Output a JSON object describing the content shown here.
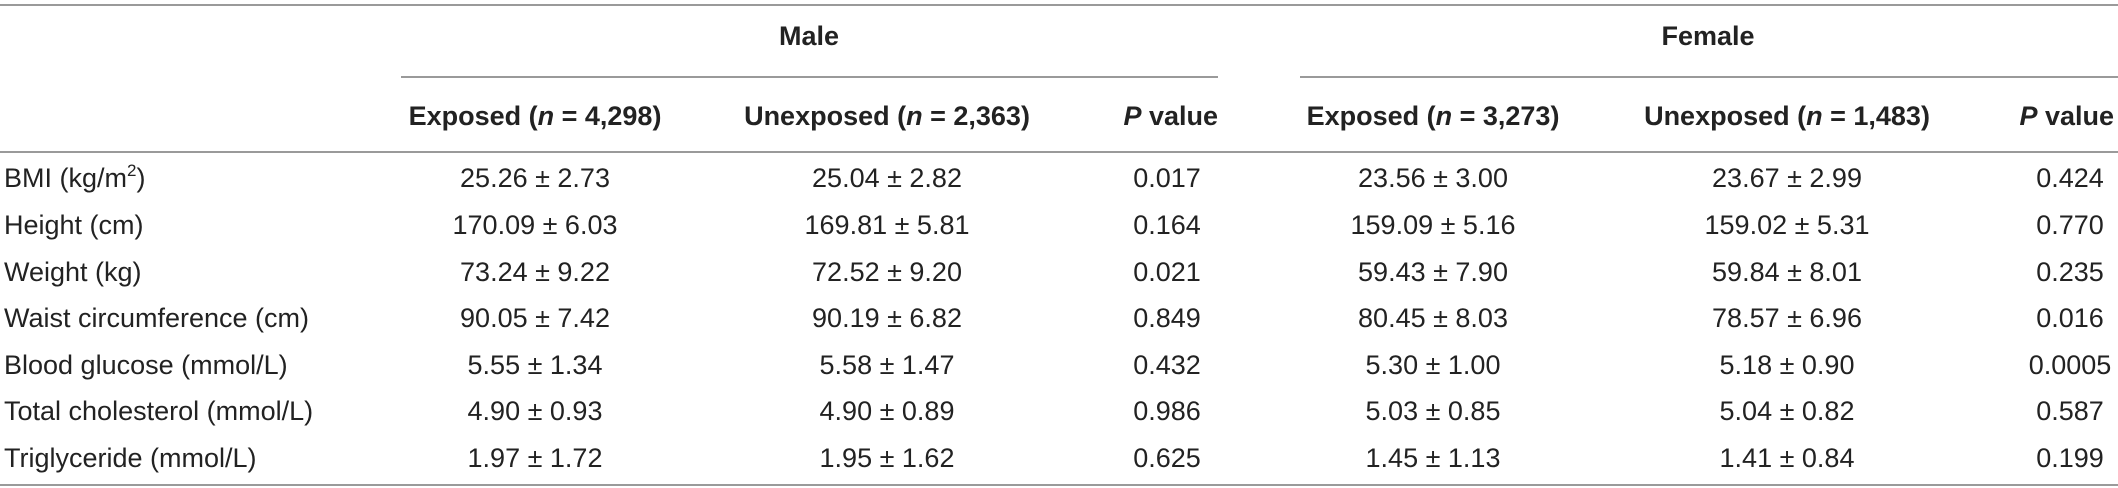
{
  "groups": [
    {
      "label": "Male"
    },
    {
      "label": "Female"
    }
  ],
  "columns": [
    {
      "prefix": "Exposed (",
      "italic": "n",
      "suffix": " = 4,298)"
    },
    {
      "prefix": "Unexposed (",
      "italic": "n",
      "suffix": " = 2,363)"
    },
    {
      "prefix": "",
      "italic": "P",
      "suffix": " value"
    },
    {
      "prefix": "Exposed (",
      "italic": "n",
      "suffix": " = 3,273)"
    },
    {
      "prefix": "Unexposed (",
      "italic": "n",
      "suffix": " = 1,483)"
    },
    {
      "prefix": "",
      "italic": "P",
      "suffix": " value"
    }
  ],
  "rows": [
    {
      "label": "BMI (kg/m",
      "label_sup": "2",
      "label_tail": ")",
      "values": [
        "25.26 ± 2.73",
        "25.04 ± 2.82",
        "0.017",
        "23.56 ± 3.00",
        "23.67 ± 2.99",
        "0.424"
      ]
    },
    {
      "label": "Height (cm)",
      "label_sup": "",
      "label_tail": "",
      "values": [
        "170.09 ± 6.03",
        "169.81 ± 5.81",
        "0.164",
        "159.09 ± 5.16",
        "159.02 ± 5.31",
        "0.770"
      ]
    },
    {
      "label": "Weight (kg)",
      "label_sup": "",
      "label_tail": "",
      "values": [
        "73.24 ± 9.22",
        "72.52 ± 9.20",
        "0.021",
        "59.43 ± 7.90",
        "59.84 ± 8.01",
        "0.235"
      ]
    },
    {
      "label": "Waist circumference (cm)",
      "label_sup": "",
      "label_tail": "",
      "values": [
        "90.05 ± 7.42",
        "90.19 ± 6.82",
        "0.849",
        "80.45 ± 8.03",
        "78.57 ± 6.96",
        "0.016"
      ]
    },
    {
      "label": "Blood glucose (mmol/L)",
      "label_sup": "",
      "label_tail": "",
      "values": [
        "5.55 ± 1.34",
        "5.58 ± 1.47",
        "0.432",
        "5.30 ± 1.00",
        "5.18 ± 0.90",
        "0.0005"
      ]
    },
    {
      "label": "Total cholesterol (mmol/L)",
      "label_sup": "",
      "label_tail": "",
      "values": [
        "4.90 ± 0.93",
        "4.90 ± 0.89",
        "0.986",
        "5.03 ± 0.85",
        "5.04 ± 0.82",
        "0.587"
      ]
    },
    {
      "label": "Triglyceride (mmol/L)",
      "label_sup": "",
      "label_tail": "",
      "values": [
        "1.97 ± 1.72",
        "1.95 ± 1.62",
        "0.625",
        "1.45 ± 1.13",
        "1.41 ± 0.84",
        "0.199"
      ]
    }
  ]
}
